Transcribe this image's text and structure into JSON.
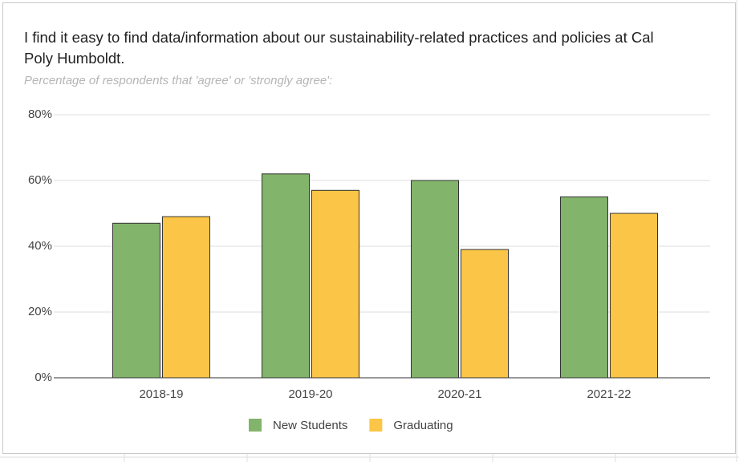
{
  "chart_data": {
    "type": "bar",
    "title": "I find it easy to find data/information about our sustainability-related practices and policies at Cal Poly Humboldt.",
    "subtitle": "Percentage of respondents that 'agree' or 'strongly agree':",
    "categories": [
      "2018-19",
      "2019-20",
      "2020-21",
      "2021-22"
    ],
    "series": [
      {
        "name": "New Students",
        "color": "#82b46b",
        "values": [
          47,
          62,
          60,
          55
        ]
      },
      {
        "name": "Graduating",
        "color": "#fbc647",
        "values": [
          49,
          57,
          39,
          50
        ]
      }
    ],
    "ylim": [
      0,
      80
    ],
    "yticks": [
      {
        "value": 0,
        "label": "0%"
      },
      {
        "value": 20,
        "label": "20%"
      },
      {
        "value": 40,
        "label": "40%"
      },
      {
        "value": 60,
        "label": "60%"
      },
      {
        "value": 80,
        "label": "80%"
      }
    ],
    "grid": true,
    "legend": "bottom"
  }
}
